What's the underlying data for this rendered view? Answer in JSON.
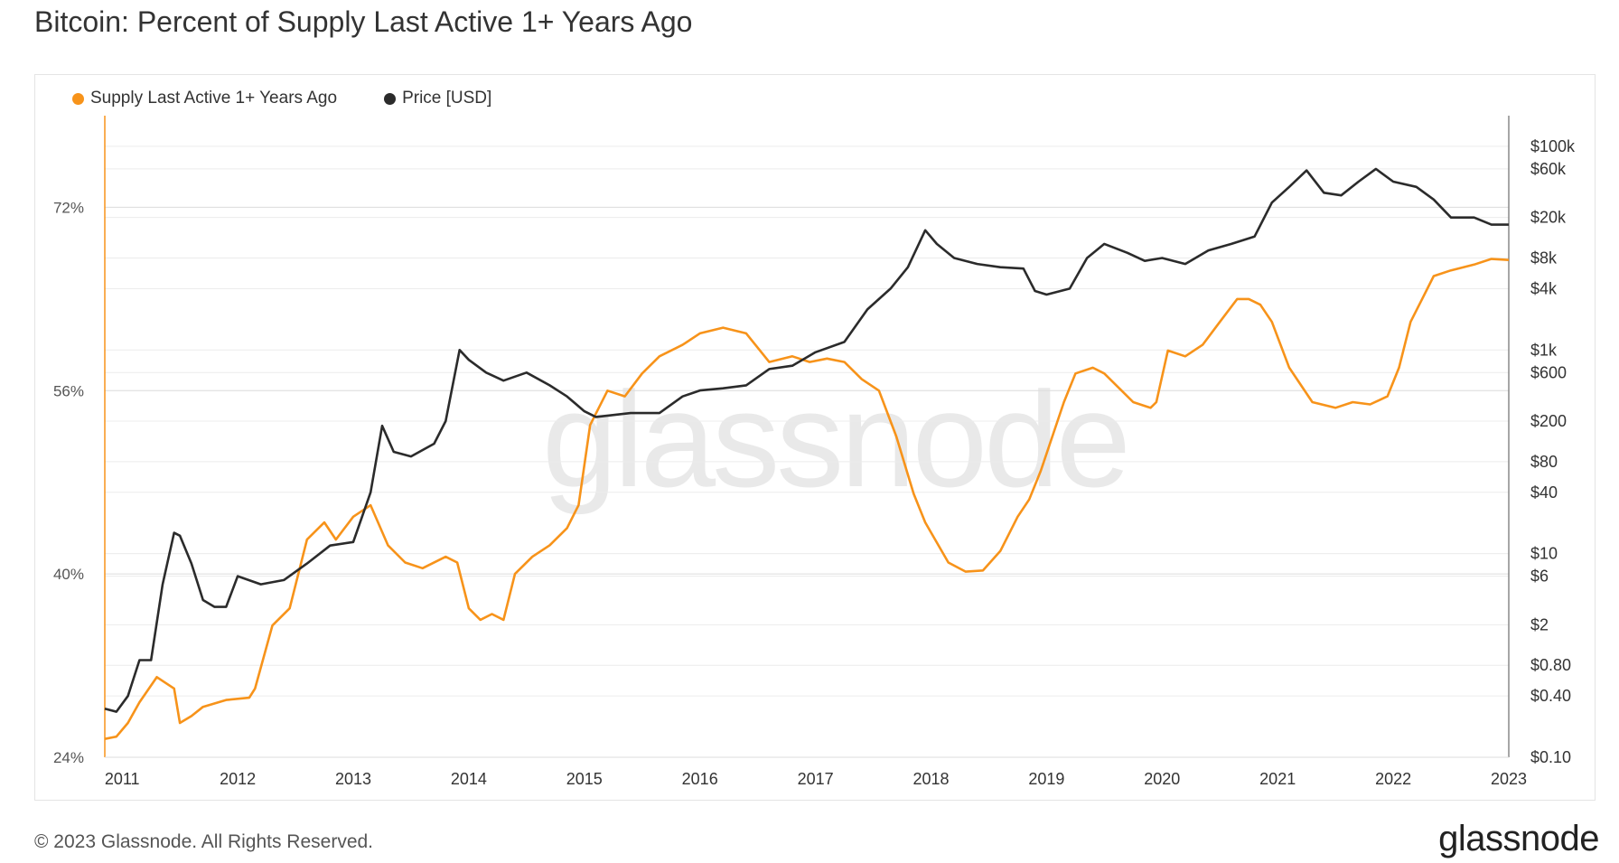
{
  "title": "Bitcoin: Percent of Supply Last Active 1+ Years Ago",
  "watermark": "glassnode",
  "footer": {
    "copyright": "© 2023 Glassnode. All Rights Reserved.",
    "logo": "glassnode"
  },
  "colors": {
    "supply": "#f7931a",
    "price": "#2b2b2b",
    "grid": "#ececec",
    "axis_text": "#555555"
  },
  "chart_data": {
    "type": "line",
    "title": "Bitcoin: Percent of Supply Last Active 1+ Years Ago",
    "legend_position": "top-left",
    "grid": true,
    "x_range": [
      2010.85,
      2023.0
    ],
    "x_ticks": [
      "2011",
      "2012",
      "2013",
      "2014",
      "2015",
      "2016",
      "2017",
      "2018",
      "2019",
      "2020",
      "2021",
      "2022",
      "2023"
    ],
    "y_left": {
      "ticks": [
        "24%",
        "40%",
        "56%",
        "72%"
      ],
      "range": [
        24,
        80
      ]
    },
    "y_right": {
      "scale": "log",
      "range": [
        0.1,
        200000
      ],
      "ticks": [
        "$0.10",
        "$0.40",
        "$0.80",
        "$2",
        "$6",
        "$10",
        "$40",
        "$80",
        "$200",
        "$600",
        "$1k",
        "$4k",
        "$8k",
        "$20k",
        "$60k",
        "$100k"
      ]
    },
    "series": [
      {
        "name": "Supply Last Active 1+ Years Ago",
        "axis": "left",
        "unit": "%",
        "x": [
          2010.85,
          2010.95,
          2011.05,
          2011.15,
          2011.3,
          2011.45,
          2011.5,
          2011.6,
          2011.7,
          2011.9,
          2012.1,
          2012.15,
          2012.3,
          2012.45,
          2012.6,
          2012.75,
          2012.85,
          2013.0,
          2013.15,
          2013.3,
          2013.45,
          2013.6,
          2013.8,
          2013.9,
          2014.0,
          2014.1,
          2014.2,
          2014.3,
          2014.4,
          2014.55,
          2014.7,
          2014.85,
          2014.95,
          2015.05,
          2015.2,
          2015.35,
          2015.5,
          2015.65,
          2015.85,
          2016.0,
          2016.2,
          2016.4,
          2016.6,
          2016.8,
          2016.95,
          2017.1,
          2017.25,
          2017.4,
          2017.55,
          2017.7,
          2017.85,
          2017.95,
          2018.15,
          2018.3,
          2018.45,
          2018.6,
          2018.75,
          2018.85,
          2018.95,
          2019.05,
          2019.15,
          2019.25,
          2019.4,
          2019.5,
          2019.65,
          2019.75,
          2019.9,
          2019.95,
          2020.05,
          2020.2,
          2020.35,
          2020.5,
          2020.65,
          2020.75,
          2020.85,
          2020.95,
          2021.1,
          2021.3,
          2021.5,
          2021.65,
          2021.8,
          2021.95,
          2022.05,
          2022.15,
          2022.25,
          2022.35,
          2022.5,
          2022.7,
          2022.85,
          2023.0
        ],
        "y": [
          25.6,
          25.8,
          27.0,
          28.8,
          31.0,
          30.0,
          27.0,
          27.6,
          28.4,
          29.0,
          29.2,
          30.0,
          35.5,
          37.0,
          43.0,
          44.5,
          43.0,
          45.0,
          46.0,
          42.5,
          41.0,
          40.5,
          41.5,
          41.0,
          37.0,
          36.0,
          36.5,
          36.0,
          40.0,
          41.5,
          42.5,
          44.0,
          46.0,
          53.0,
          56.0,
          55.5,
          57.5,
          59.0,
          60.0,
          61.0,
          61.5,
          61.0,
          58.5,
          59.0,
          58.5,
          58.8,
          58.5,
          57.0,
          56.0,
          52.0,
          47.0,
          44.5,
          41.0,
          40.2,
          40.3,
          42.0,
          45.0,
          46.5,
          49.0,
          52.0,
          55.0,
          57.5,
          58.0,
          57.5,
          56.0,
          55.0,
          54.5,
          55.0,
          59.5,
          59.0,
          60.0,
          62.0,
          64.0,
          64.0,
          63.5,
          62.0,
          58.0,
          55.0,
          54.5,
          55.0,
          54.8,
          55.5,
          58.0,
          62.0,
          64.0,
          66.0,
          66.5,
          67.0,
          67.5,
          67.4
        ]
      },
      {
        "name": "Price [USD]",
        "axis": "right",
        "unit": "USD",
        "x": [
          2010.85,
          2010.95,
          2011.05,
          2011.15,
          2011.25,
          2011.35,
          2011.45,
          2011.5,
          2011.6,
          2011.7,
          2011.8,
          2011.9,
          2012.0,
          2012.2,
          2012.4,
          2012.6,
          2012.8,
          2013.0,
          2013.15,
          2013.25,
          2013.35,
          2013.5,
          2013.7,
          2013.8,
          2013.92,
          2014.0,
          2014.15,
          2014.3,
          2014.5,
          2014.7,
          2014.85,
          2015.0,
          2015.1,
          2015.4,
          2015.65,
          2015.85,
          2016.0,
          2016.2,
          2016.4,
          2016.6,
          2016.8,
          2017.0,
          2017.25,
          2017.45,
          2017.65,
          2017.8,
          2017.95,
          2018.05,
          2018.2,
          2018.4,
          2018.6,
          2018.8,
          2018.9,
          2019.0,
          2019.2,
          2019.35,
          2019.5,
          2019.7,
          2019.85,
          2020.0,
          2020.2,
          2020.4,
          2020.6,
          2020.8,
          2020.95,
          2021.1,
          2021.25,
          2021.4,
          2021.55,
          2021.7,
          2021.85,
          2022.0,
          2022.2,
          2022.35,
          2022.5,
          2022.7,
          2022.85,
          2023.0
        ],
        "y": [
          0.3,
          0.28,
          0.4,
          0.9,
          0.9,
          5.0,
          16.0,
          15.0,
          8.0,
          3.5,
          3.0,
          3.0,
          6.0,
          5.0,
          5.5,
          8.0,
          12.0,
          13.0,
          40.0,
          180.0,
          100.0,
          90.0,
          120.0,
          200.0,
          1000.0,
          800.0,
          600.0,
          500.0,
          600.0,
          450.0,
          350.0,
          250.0,
          220.0,
          240.0,
          240.0,
          350.0,
          400.0,
          420.0,
          450.0,
          650.0,
          700.0,
          950.0,
          1200.0,
          2500.0,
          4000.0,
          6500.0,
          15000.0,
          11000.0,
          8000.0,
          7000.0,
          6500.0,
          6300.0,
          3800.0,
          3500.0,
          4000.0,
          8000.0,
          11000.0,
          9000.0,
          7500.0,
          8000.0,
          7000.0,
          9500.0,
          11000.0,
          13000.0,
          28000.0,
          40000.0,
          58000.0,
          35000.0,
          33000.0,
          45000.0,
          60000.0,
          45000.0,
          40000.0,
          30000.0,
          20000.0,
          20000.0,
          17000.0,
          17000.0
        ]
      }
    ]
  }
}
